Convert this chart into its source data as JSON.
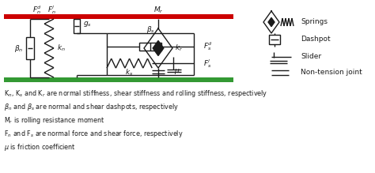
{
  "bg_color": "#ffffff",
  "top_bar_color": "#cc0000",
  "bottom_bar_color": "#339933",
  "line_color": "#1a1a1a",
  "text_color": "#1a1a1a",
  "legend_items": [
    "Springs",
    "Dashpot",
    "Slider",
    "Non-tension joint"
  ],
  "caption_lines": [
    "K$_n$, K$_s$ and K$_r$ are normal stiffness, shear stiffness and rolling stiffness, respectively",
    "$\\beta_n$ and $\\beta_s$ are normal and shear dashpots, respectively",
    "M$_r$ is rolling resistance moment",
    "F$_n$ and F$_s$ are normal force and shear force, respectively",
    "$\\mu$ is friction coefficient"
  ]
}
